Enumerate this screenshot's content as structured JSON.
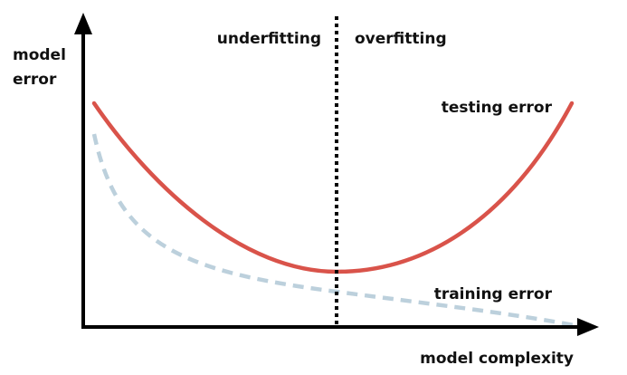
{
  "y_axis_label": {
    "line1": "model",
    "line2": "error"
  },
  "x_axis_label": "model complexity",
  "regions": {
    "left": "underfitting",
    "right": "overfitting"
  },
  "curves": {
    "testing": {
      "label": "testing error",
      "color": "#d9534a"
    },
    "training": {
      "label": "training error",
      "color": "#bcd0dc"
    }
  },
  "colors": {
    "axes": "#000000",
    "divider": "#000000",
    "text": "#111111"
  }
}
